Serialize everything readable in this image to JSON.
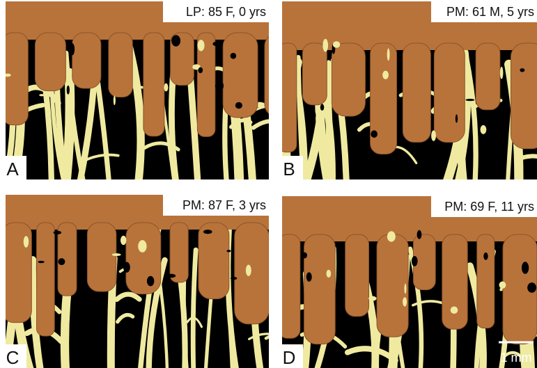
{
  "panels": [
    {
      "letter": "A",
      "caption": "LP: 85 F, 0 yrs"
    },
    {
      "letter": "B",
      "caption": "PM: 61 M, 5 yrs"
    },
    {
      "letter": "C",
      "caption": "PM: 87 F, 3 yrs"
    },
    {
      "letter": "D",
      "caption": "PM: 69 F, 11 yrs"
    }
  ],
  "scale_bar": {
    "label": "1 mm"
  }
}
